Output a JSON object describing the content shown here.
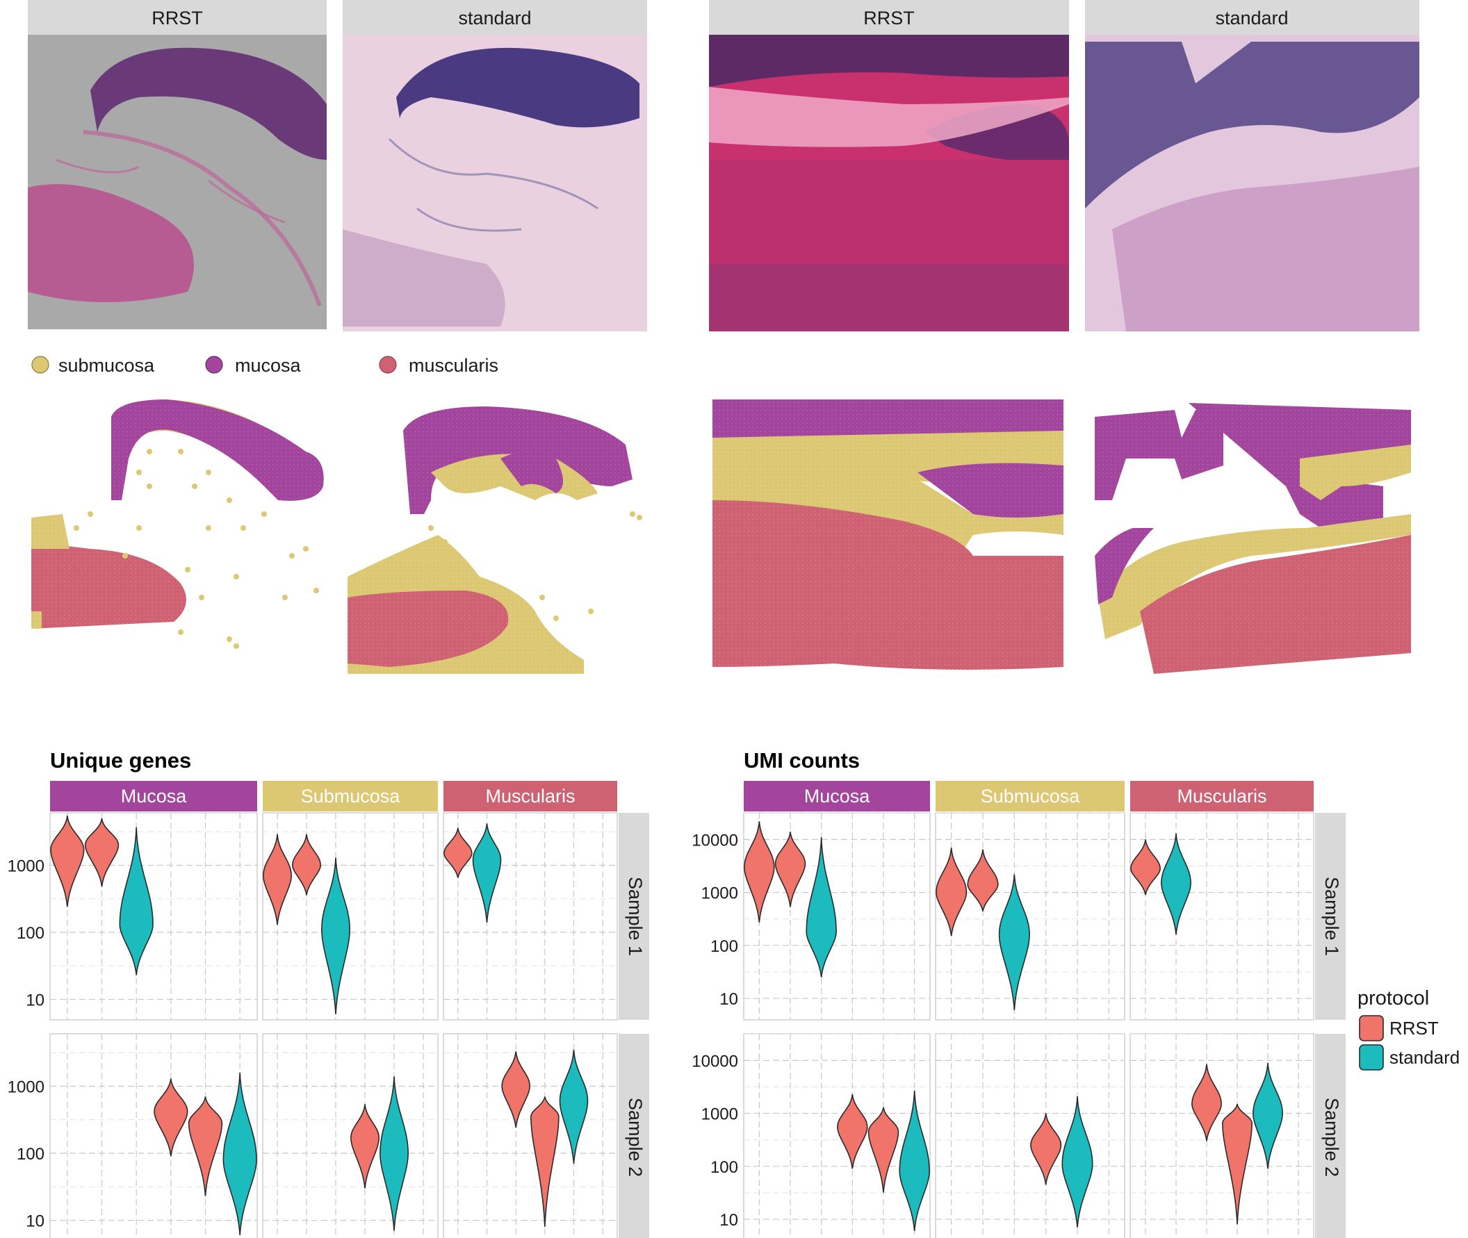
{
  "histology": {
    "panels": [
      {
        "label": "RRST"
      },
      {
        "label": "standard"
      },
      {
        "label": "RRST"
      },
      {
        "label": "standard"
      }
    ]
  },
  "region_legend": {
    "items": [
      {
        "label": "submucosa",
        "color": "#dcc873"
      },
      {
        "label": "mucosa",
        "color": "#a3449d"
      },
      {
        "label": "muscularis",
        "color": "#cf6272"
      }
    ]
  },
  "colors": {
    "RRST": "#f0746a",
    "standard": "#1cbcbe",
    "Mucosa": "#a3449d",
    "Submucosa": "#dcc873",
    "Muscularis": "#cf6272"
  },
  "chart_data": [
    {
      "type": "violin",
      "title": "Unique genes",
      "log_y": true,
      "yticks": [
        "10",
        "100",
        "1000"
      ],
      "ylim": [
        6,
        5000
      ],
      "columns": [
        "Mucosa",
        "Submucosa",
        "Muscularis"
      ],
      "rows": [
        "Sample 1",
        "Sample 2"
      ],
      "legend": {
        "title": "protocol",
        "items": [
          "RRST",
          "standard"
        ]
      },
      "violins": [
        {
          "row": "Sample 1",
          "column": "Mucosa",
          "protocol": "RRST",
          "x": 1,
          "min": 240,
          "median": 1700,
          "max": 5500
        },
        {
          "row": "Sample 1",
          "column": "Mucosa",
          "protocol": "RRST",
          "x": 2,
          "min": 480,
          "median": 2000,
          "max": 5000
        },
        {
          "row": "Sample 1",
          "column": "Mucosa",
          "protocol": "standard",
          "x": 3,
          "min": 23,
          "median": 130,
          "max": 3700
        },
        {
          "row": "Sample 1",
          "column": "Submucosa",
          "protocol": "RRST",
          "x": 1,
          "min": 130,
          "median": 700,
          "max": 2900
        },
        {
          "row": "Sample 1",
          "column": "Submucosa",
          "protocol": "RRST",
          "x": 2,
          "min": 360,
          "median": 1000,
          "max": 2900
        },
        {
          "row": "Sample 1",
          "column": "Submucosa",
          "protocol": "standard",
          "x": 3,
          "min": 6,
          "median": 110,
          "max": 1300
        },
        {
          "row": "Sample 1",
          "column": "Muscularis",
          "protocol": "RRST",
          "x": 1,
          "min": 650,
          "median": 1500,
          "max": 3600
        },
        {
          "row": "Sample 1",
          "column": "Muscularis",
          "protocol": "standard",
          "x": 2,
          "min": 140,
          "median": 1200,
          "max": 4200
        },
        {
          "row": "Sample 2",
          "column": "Mucosa",
          "protocol": "RRST",
          "x": 4,
          "min": 90,
          "median": 420,
          "max": 1300
        },
        {
          "row": "Sample 2",
          "column": "Mucosa",
          "protocol": "RRST",
          "x": 5,
          "min": 23,
          "median": 280,
          "max": 700
        },
        {
          "row": "Sample 2",
          "column": "Mucosa",
          "protocol": "standard",
          "x": 6,
          "min": 6,
          "median": 80,
          "max": 1600
        },
        {
          "row": "Sample 2",
          "column": "Submucosa",
          "protocol": "RRST",
          "x": 4,
          "min": 30,
          "median": 170,
          "max": 540
        },
        {
          "row": "Sample 2",
          "column": "Submucosa",
          "protocol": "standard",
          "x": 5,
          "min": 7,
          "median": 100,
          "max": 1400
        },
        {
          "row": "Sample 2",
          "column": "Muscularis",
          "protocol": "RRST",
          "x": 3,
          "min": 240,
          "median": 1000,
          "max": 3300
        },
        {
          "row": "Sample 2",
          "column": "Muscularis",
          "protocol": "RRST",
          "x": 4,
          "min": 8,
          "median": 350,
          "max": 700
        },
        {
          "row": "Sample 2",
          "column": "Muscularis",
          "protocol": "standard",
          "x": 5,
          "min": 70,
          "median": 600,
          "max": 3500
        }
      ]
    },
    {
      "type": "violin",
      "title": "UMI counts",
      "log_y": true,
      "yticks": [
        "10",
        "100",
        "1000",
        "10000"
      ],
      "ylim": [
        5,
        25000
      ],
      "columns": [
        "Mucosa",
        "Submucosa",
        "Muscularis"
      ],
      "rows": [
        "Sample 1",
        "Sample 2"
      ],
      "legend": {
        "title": "protocol",
        "items": [
          "RRST",
          "standard"
        ]
      },
      "violins": [
        {
          "row": "Sample 1",
          "column": "Mucosa",
          "protocol": "RRST",
          "x": 1,
          "min": 270,
          "median": 3000,
          "max": 22000
        },
        {
          "row": "Sample 1",
          "column": "Mucosa",
          "protocol": "RRST",
          "x": 2,
          "min": 530,
          "median": 3500,
          "max": 14000
        },
        {
          "row": "Sample 1",
          "column": "Mucosa",
          "protocol": "standard",
          "x": 3,
          "min": 25,
          "median": 180,
          "max": 11000
        },
        {
          "row": "Sample 1",
          "column": "Submucosa",
          "protocol": "RRST",
          "x": 1,
          "min": 150,
          "median": 1000,
          "max": 7000
        },
        {
          "row": "Sample 1",
          "column": "Submucosa",
          "protocol": "RRST",
          "x": 2,
          "min": 440,
          "median": 1400,
          "max": 6500
        },
        {
          "row": "Sample 1",
          "column": "Submucosa",
          "protocol": "standard",
          "x": 3,
          "min": 6,
          "median": 160,
          "max": 2200
        },
        {
          "row": "Sample 1",
          "column": "Muscularis",
          "protocol": "RRST",
          "x": 1,
          "min": 900,
          "median": 2800,
          "max": 10000
        },
        {
          "row": "Sample 1",
          "column": "Muscularis",
          "protocol": "standard",
          "x": 2,
          "min": 160,
          "median": 1500,
          "max": 13000
        },
        {
          "row": "Sample 2",
          "column": "Mucosa",
          "protocol": "RRST",
          "x": 4,
          "min": 90,
          "median": 550,
          "max": 2300
        },
        {
          "row": "Sample 2",
          "column": "Mucosa",
          "protocol": "RRST",
          "x": 5,
          "min": 32,
          "median": 450,
          "max": 1300
        },
        {
          "row": "Sample 2",
          "column": "Mucosa",
          "protocol": "standard",
          "x": 6,
          "min": 6,
          "median": 80,
          "max": 2700
        },
        {
          "row": "Sample 2",
          "column": "Submucosa",
          "protocol": "RRST",
          "x": 4,
          "min": 45,
          "median": 250,
          "max": 1000
        },
        {
          "row": "Sample 2",
          "column": "Submucosa",
          "protocol": "standard",
          "x": 5,
          "min": 7,
          "median": 110,
          "max": 2100
        },
        {
          "row": "Sample 2",
          "column": "Muscularis",
          "protocol": "RRST",
          "x": 3,
          "min": 300,
          "median": 1500,
          "max": 8500
        },
        {
          "row": "Sample 2",
          "column": "Muscularis",
          "protocol": "RRST",
          "x": 4,
          "min": 8,
          "median": 650,
          "max": 1500
        },
        {
          "row": "Sample 2",
          "column": "Muscularis",
          "protocol": "standard",
          "x": 5,
          "min": 90,
          "median": 1000,
          "max": 9000
        }
      ]
    }
  ]
}
